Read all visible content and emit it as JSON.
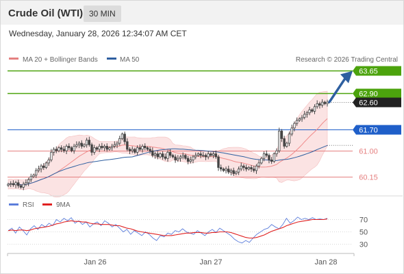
{
  "header": {
    "title": "Crude Oil (WTI)",
    "timeframe": "30 MIN",
    "timestamp": "Wednesday, January 28, 2026 12:34:07 AM CET",
    "copyright": "Research © 2026 Trading Central"
  },
  "colors": {
    "green": "#4ca30d",
    "blue": "#1f5fc9",
    "red_line": "#e58080",
    "dark_tag": "#222222",
    "band_fill": "#fbe1e1",
    "candle": "#444444",
    "arrow": "#2e5fa0",
    "rsi": "#5b7ddb",
    "rsi_ma": "#e02020"
  },
  "chart_data": [
    {
      "type": "candlestick",
      "title": "",
      "legend": [
        "MA 20 + Bollinger Bands",
        "MA 50"
      ],
      "legend_position": "top-left",
      "x_ticks": [
        "Jan 26",
        "Jan 27",
        "Jan 28"
      ],
      "y_range": [
        59.2,
        64.0
      ],
      "horizontal_lines": [
        {
          "value": 63.65,
          "label": "63.65",
          "color": "#4ca30d",
          "kind": "resistance"
        },
        {
          "value": 62.9,
          "label": "62.90",
          "color": "#4ca30d",
          "kind": "resistance"
        },
        {
          "value": 61.7,
          "label": "61.70",
          "color": "#1f5fc9",
          "kind": "pivot"
        },
        {
          "value": 61.0,
          "label": "61.00",
          "color": "#e58080",
          "kind": "support"
        },
        {
          "value": 60.15,
          "label": "60.15",
          "color": "#e58080",
          "kind": "support"
        }
      ],
      "last_price": {
        "value": 62.6,
        "label": "62.60"
      },
      "closes": [
        59.9,
        59.92,
        59.88,
        59.95,
        59.85,
        59.8,
        59.9,
        59.95,
        60.05,
        60.15,
        60.2,
        60.35,
        60.4,
        60.5,
        60.45,
        60.6,
        60.7,
        60.95,
        61.05,
        61.0,
        61.1,
        61.05,
        61.0,
        61.15,
        61.1,
        61.0,
        61.15,
        61.2,
        61.25,
        61.15,
        61.2,
        61.35,
        61.2,
        60.95,
        61.1,
        61.05,
        61.15,
        61.1,
        61.15,
        61.05,
        61.1,
        61.15,
        61.2,
        61.25,
        61.4,
        61.55,
        61.3,
        61.05,
        61.0,
        61.05,
        60.95,
        61.1,
        61.05,
        61.15,
        61.1,
        61.05,
        61.0,
        60.85,
        60.9,
        60.8,
        60.9,
        60.8,
        60.75,
        60.95,
        60.85,
        60.8,
        60.7,
        60.75,
        60.8,
        60.85,
        60.75,
        60.65,
        60.7,
        60.8,
        60.85,
        60.9,
        60.85,
        60.85,
        60.8,
        60.9,
        60.85,
        60.9,
        60.8,
        60.45,
        60.4,
        60.35,
        60.4,
        60.3,
        60.35,
        60.25,
        60.3,
        60.4,
        60.5,
        60.45,
        60.4,
        60.45,
        60.4,
        60.35,
        60.5,
        60.6,
        60.75,
        60.9,
        60.85,
        60.7,
        60.65,
        60.9,
        61.0,
        61.65,
        61.4,
        61.15,
        61.25,
        61.55,
        61.75,
        61.9,
        62.0,
        62.05,
        62.1,
        62.2,
        62.25,
        62.35,
        62.3,
        62.45,
        62.55,
        62.5,
        62.6,
        62.55,
        62.6
      ]
    },
    {
      "type": "line",
      "legend": [
        "RSI",
        "9MA"
      ],
      "y_ticks": [
        70,
        50,
        30
      ],
      "y_range": [
        15,
        85
      ],
      "series": [
        {
          "name": "RSI",
          "values": [
            52,
            56,
            48,
            58,
            52,
            45,
            55,
            60,
            54,
            62,
            58,
            64,
            60,
            70,
            66,
            72,
            68,
            73,
            64,
            68,
            62,
            66,
            58,
            63,
            66,
            60,
            68,
            64,
            58,
            62,
            56,
            50,
            54,
            46,
            52,
            48,
            44,
            50,
            46,
            40,
            36,
            44,
            42,
            48,
            46,
            52,
            50,
            55,
            50,
            48,
            46,
            52,
            48,
            44,
            50,
            54,
            49,
            56,
            52,
            48,
            44,
            38,
            34,
            32,
            36,
            33,
            40,
            46,
            50,
            54,
            56,
            62,
            58,
            55,
            62,
            72,
            64,
            68,
            74,
            70,
            72,
            70,
            73,
            70,
            71,
            70,
            72
          ]
        },
        {
          "name": "9MA",
          "values": [
            52,
            53,
            52,
            53,
            53,
            52,
            53,
            55,
            56,
            57,
            58,
            59,
            61,
            63,
            64,
            66,
            67,
            68,
            67,
            67,
            66,
            66,
            64,
            63,
            63,
            62,
            62,
            62,
            61,
            60,
            60,
            58,
            56,
            55,
            53,
            51,
            50,
            49,
            48,
            47,
            46,
            45,
            44,
            44,
            44,
            45,
            46,
            47,
            48,
            48,
            49,
            49,
            49,
            48,
            48,
            49,
            49,
            50,
            50,
            50,
            49,
            47,
            45,
            43,
            41,
            40,
            40,
            41,
            43,
            45,
            48,
            51,
            53,
            55,
            57,
            60,
            62,
            64,
            66,
            67,
            68,
            69,
            70,
            70,
            70,
            70,
            71
          ]
        }
      ]
    }
  ]
}
